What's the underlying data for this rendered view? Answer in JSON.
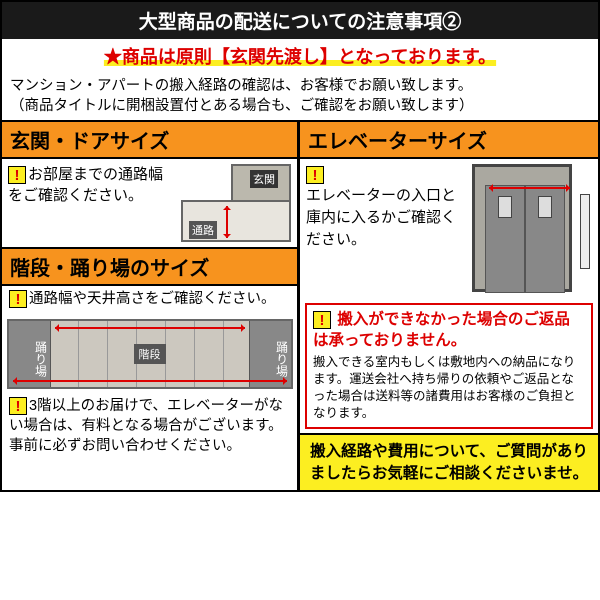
{
  "header": "大型商品の配送についての注意事項②",
  "subheader": "★商品は原則【玄関先渡し】となっております。",
  "intro1": "マンション・アパートの搬入経路の確認は、お客様でお願い致します。",
  "intro2": "（商品タイトルに開梱設置付とある場合も、ご確認をお願い致します）",
  "left": {
    "sec1": {
      "title": "玄関・ドアサイズ",
      "text": "お部屋までの通路幅をご確認ください。",
      "door_label": "玄関",
      "path_label": "通路"
    },
    "sec2": {
      "title": "階段・踊り場のサイズ",
      "text1": "通路幅や天井高さをご確認ください。",
      "landing": "踊り場",
      "stairs": "階段",
      "text2": "3階以上のお届けで、エレベーターがない場合は、有料となる場合がございます。 事前に必ずお問い合わせください。"
    }
  },
  "right": {
    "sec1": {
      "title": "エレベーターサイズ",
      "text": "エレベーターの入口と庫内に入るかご確認ください。"
    },
    "notice": {
      "title": "搬入ができなかった場合のご返品は承っておりません。",
      "body": "搬入できる室内もしくは敷地内への納品になります。運送会社へ持ち帰りの依頼やご返品となった場合は送料等の諸費用はお客様のご負担となります。"
    },
    "footer": "搬入経路や費用について、ご質問がありましたらお気軽にご相談くださいませ。"
  },
  "colors": {
    "header_bg": "#1a1a1a",
    "orange": "#f7931e",
    "yellow": "#fcee21",
    "red": "#d00000"
  }
}
